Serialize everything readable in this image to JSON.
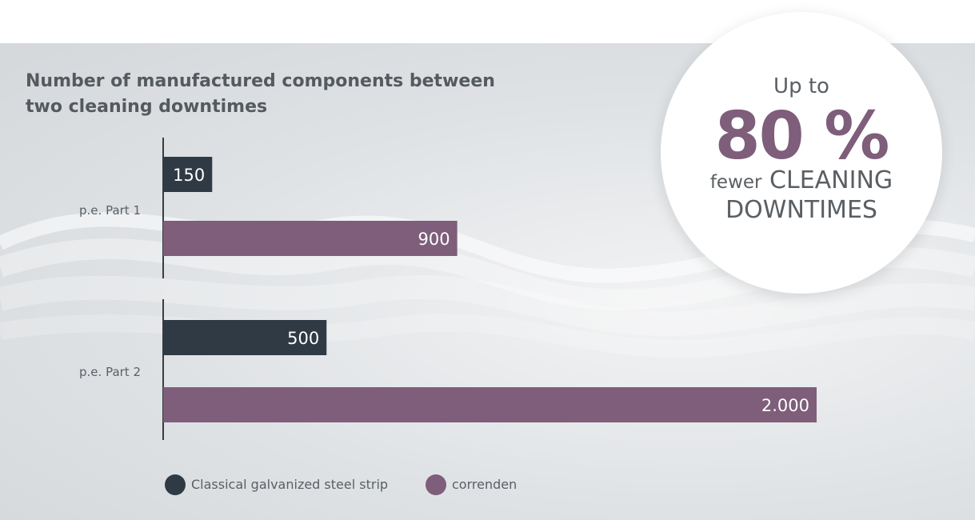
{
  "title": {
    "line1": "Number of manufactured components between",
    "line2": "two cleaning downtimes"
  },
  "badge": {
    "line1": "Up to",
    "big": "80 %",
    "line3_small": "fewer",
    "line3": "CLEANING",
    "line4": "DOWNTIMES"
  },
  "legend": {
    "classical": "Classical galvanized steel strip",
    "correnden": "correnden"
  },
  "colors": {
    "classical": "#2f3a45",
    "correnden": "#7e5e7a",
    "axis": "#3a3d40",
    "category_text": "#5a5f63"
  },
  "chart_data": {
    "type": "bar",
    "orientation": "horizontal",
    "title": "Number of manufactured components between two cleaning downtimes",
    "categories": [
      "p.e. Part 1",
      "p.e. Part 2"
    ],
    "series": [
      {
        "name": "Classical galvanized steel strip",
        "values": [
          150,
          500
        ],
        "labels": [
          "150",
          "500"
        ]
      },
      {
        "name": "correnden",
        "values": [
          900,
          2000
        ],
        "labels": [
          "900",
          "2.000"
        ]
      }
    ],
    "xlim": [
      0,
      2000
    ],
    "grid": false,
    "legend_position": "bottom-left"
  }
}
